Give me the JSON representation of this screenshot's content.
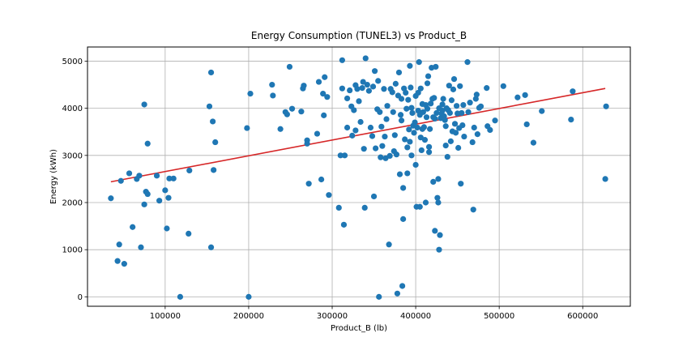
{
  "chart_data": {
    "type": "scatter",
    "title": "Energy Consumption (TUNEL3) vs Product_B",
    "xlabel": "Product_B (lb)",
    "ylabel": "Energy (kWh)",
    "xlim": [
      7000,
      657000
    ],
    "ylim": [
      -200,
      5300
    ],
    "x_ticks": [
      100000,
      200000,
      300000,
      400000,
      500000,
      600000
    ],
    "y_ticks": [
      0,
      1000,
      2000,
      3000,
      4000,
      5000
    ],
    "grid": true,
    "colors": {
      "points": "#1f77b4",
      "trend": "#d62728",
      "grid": "#b0b0b0"
    },
    "trend_line": {
      "x": [
        35000,
        627000
      ],
      "y": [
        2440,
        4420
      ]
    },
    "series": [
      {
        "points": [
          [
            35000,
            2090
          ],
          [
            43000,
            760
          ],
          [
            45000,
            1110
          ],
          [
            47000,
            2460
          ],
          [
            51000,
            700
          ],
          [
            57000,
            2620
          ],
          [
            61000,
            1480
          ],
          [
            66000,
            2500
          ],
          [
            69000,
            2570
          ],
          [
            71000,
            1050
          ],
          [
            75000,
            4080
          ],
          [
            75000,
            1960
          ],
          [
            77000,
            2230
          ],
          [
            79000,
            2180
          ],
          [
            79000,
            3250
          ],
          [
            90000,
            2570
          ],
          [
            93000,
            2040
          ],
          [
            100000,
            2260
          ],
          [
            102000,
            1450
          ],
          [
            104000,
            2100
          ],
          [
            105000,
            2510
          ],
          [
            110000,
            2510
          ],
          [
            118000,
            0
          ],
          [
            128000,
            1340
          ],
          [
            129000,
            2680
          ],
          [
            153000,
            4040
          ],
          [
            155000,
            1050
          ],
          [
            155000,
            4760
          ],
          [
            157000,
            3720
          ],
          [
            158000,
            2690
          ],
          [
            160000,
            3280
          ],
          [
            198000,
            3580
          ],
          [
            200000,
            0
          ],
          [
            202000,
            4310
          ],
          [
            228000,
            4500
          ],
          [
            229000,
            4270
          ],
          [
            238000,
            3560
          ],
          [
            244000,
            3920
          ],
          [
            246000,
            3870
          ],
          [
            249000,
            4880
          ],
          [
            252000,
            3990
          ],
          [
            263000,
            3930
          ],
          [
            265000,
            4420
          ],
          [
            266000,
            4480
          ],
          [
            270000,
            3320
          ],
          [
            270000,
            3250
          ],
          [
            272000,
            2400
          ],
          [
            282000,
            3460
          ],
          [
            284000,
            4560
          ],
          [
            287000,
            2490
          ],
          [
            289000,
            4310
          ],
          [
            290000,
            3850
          ],
          [
            291000,
            4660
          ],
          [
            294000,
            4240
          ],
          [
            296000,
            2160
          ],
          [
            308000,
            1890
          ],
          [
            310000,
            3000
          ],
          [
            312000,
            4420
          ],
          [
            312000,
            5020
          ],
          [
            314000,
            1530
          ],
          [
            315000,
            3000
          ],
          [
            318000,
            4210
          ],
          [
            318000,
            3590
          ],
          [
            321000,
            4380
          ],
          [
            323000,
            4040
          ],
          [
            324000,
            3420
          ],
          [
            326000,
            3960
          ],
          [
            328000,
            4490
          ],
          [
            328000,
            3530
          ],
          [
            330000,
            4410
          ],
          [
            332000,
            4150
          ],
          [
            334000,
            3710
          ],
          [
            336000,
            4430
          ],
          [
            337000,
            4560
          ],
          [
            338000,
            3140
          ],
          [
            339000,
            1890
          ],
          [
            340000,
            5060
          ],
          [
            342000,
            4500
          ],
          [
            344000,
            4370
          ],
          [
            346000,
            3590
          ],
          [
            348000,
            3410
          ],
          [
            349000,
            4460
          ],
          [
            350000,
            2130
          ],
          [
            351000,
            4790
          ],
          [
            352000,
            3150
          ],
          [
            354000,
            3980
          ],
          [
            355000,
            4580
          ],
          [
            356000,
            0
          ],
          [
            357000,
            3920
          ],
          [
            358000,
            2960
          ],
          [
            359000,
            3610
          ],
          [
            360000,
            3200
          ],
          [
            362000,
            4410
          ],
          [
            363000,
            3400
          ],
          [
            364000,
            2940
          ],
          [
            365000,
            3770
          ],
          [
            366000,
            4050
          ],
          [
            368000,
            1110
          ],
          [
            369000,
            2990
          ],
          [
            370000,
            4410
          ],
          [
            372000,
            4340
          ],
          [
            373000,
            3920
          ],
          [
            374000,
            3090
          ],
          [
            375000,
            3430
          ],
          [
            376000,
            4520
          ],
          [
            377000,
            3020
          ],
          [
            378000,
            70
          ],
          [
            379000,
            4270
          ],
          [
            380000,
            4760
          ],
          [
            381000,
            2600
          ],
          [
            382000,
            3860
          ],
          [
            383000,
            3740
          ],
          [
            383000,
            4200
          ],
          [
            384000,
            230
          ],
          [
            385000,
            1650
          ],
          [
            385000,
            2310
          ],
          [
            386000,
            4420
          ],
          [
            387000,
            3340
          ],
          [
            388000,
            4330
          ],
          [
            389000,
            3990
          ],
          [
            390000,
            3170
          ],
          [
            390000,
            2620
          ],
          [
            391000,
            4180
          ],
          [
            392000,
            3550
          ],
          [
            393000,
            3290
          ],
          [
            393000,
            4900
          ],
          [
            394000,
            4440
          ],
          [
            395000,
            3000
          ],
          [
            395000,
            4010
          ],
          [
            396000,
            3900
          ],
          [
            397000,
            3630
          ],
          [
            398000,
            3480
          ],
          [
            399000,
            3700
          ],
          [
            400000,
            4260
          ],
          [
            400000,
            2800
          ],
          [
            401000,
            1910
          ],
          [
            402000,
            3590
          ],
          [
            403000,
            3950
          ],
          [
            403000,
            4330
          ],
          [
            404000,
            4980
          ],
          [
            405000,
            1910
          ],
          [
            405000,
            3860
          ],
          [
            406000,
            3380
          ],
          [
            406000,
            4420
          ],
          [
            407000,
            3110
          ],
          [
            408000,
            3560
          ],
          [
            408000,
            4090
          ],
          [
            409000,
            3920
          ],
          [
            410000,
            3600
          ],
          [
            411000,
            3330
          ],
          [
            412000,
            4070
          ],
          [
            412000,
            2000
          ],
          [
            413000,
            3810
          ],
          [
            414000,
            4530
          ],
          [
            414000,
            3990
          ],
          [
            415000,
            4680
          ],
          [
            416000,
            3180
          ],
          [
            416000,
            3070
          ],
          [
            417000,
            3560
          ],
          [
            418000,
            4100
          ],
          [
            419000,
            4860
          ],
          [
            420000,
            4200
          ],
          [
            421000,
            2440
          ],
          [
            421000,
            3810
          ],
          [
            422000,
            4220
          ],
          [
            423000,
            3780
          ],
          [
            423000,
            1400
          ],
          [
            424000,
            4880
          ],
          [
            425000,
            3900
          ],
          [
            426000,
            2100
          ],
          [
            427000,
            2500
          ],
          [
            427000,
            2000
          ],
          [
            428000,
            1000
          ],
          [
            428000,
            4000
          ],
          [
            429000,
            1310
          ],
          [
            430000,
            3790
          ],
          [
            431000,
            3890
          ],
          [
            432000,
            3950
          ],
          [
            432000,
            4080
          ],
          [
            433000,
            4200
          ],
          [
            434000,
            3830
          ],
          [
            435000,
            3750
          ],
          [
            436000,
            3620
          ],
          [
            436000,
            3210
          ],
          [
            437000,
            4000
          ],
          [
            438000,
            2970
          ],
          [
            439000,
            3960
          ],
          [
            440000,
            4480
          ],
          [
            441000,
            3900
          ],
          [
            442000,
            3300
          ],
          [
            443000,
            4170
          ],
          [
            444000,
            3510
          ],
          [
            445000,
            4400
          ],
          [
            446000,
            4620
          ],
          [
            447000,
            3670
          ],
          [
            448000,
            3480
          ],
          [
            449000,
            4050
          ],
          [
            450000,
            3890
          ],
          [
            451000,
            3160
          ],
          [
            452000,
            3580
          ],
          [
            453000,
            4470
          ],
          [
            454000,
            2400
          ],
          [
            455000,
            3900
          ],
          [
            456000,
            3640
          ],
          [
            457000,
            4070
          ],
          [
            458000,
            3400
          ],
          [
            462000,
            4980
          ],
          [
            463000,
            3920
          ],
          [
            465000,
            4120
          ],
          [
            468000,
            3280
          ],
          [
            469000,
            1850
          ],
          [
            470000,
            3590
          ],
          [
            472000,
            4200
          ],
          [
            473000,
            4290
          ],
          [
            474000,
            3450
          ],
          [
            476000,
            4010
          ],
          [
            478000,
            4040
          ],
          [
            485000,
            4430
          ],
          [
            486000,
            3620
          ],
          [
            489000,
            3540
          ],
          [
            495000,
            3740
          ],
          [
            505000,
            4470
          ],
          [
            522000,
            4230
          ],
          [
            531000,
            4280
          ],
          [
            533000,
            3660
          ],
          [
            541000,
            3270
          ],
          [
            551000,
            3940
          ],
          [
            586000,
            3760
          ],
          [
            588000,
            4360
          ],
          [
            627000,
            2500
          ],
          [
            628000,
            4040
          ]
        ]
      }
    ]
  }
}
